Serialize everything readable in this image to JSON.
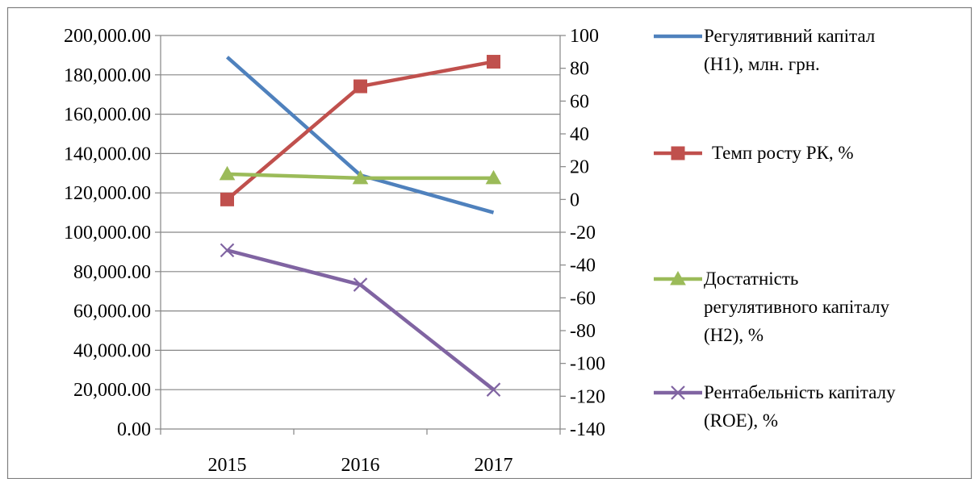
{
  "chart_data": {
    "type": "line",
    "title": "",
    "categories": [
      "2015",
      "2016",
      "2017"
    ],
    "y_left": {
      "ylim": [
        0,
        200000
      ],
      "ticks": [
        "0.00",
        "20,000.00",
        "40,000.00",
        "60,000.00",
        "80,000.00",
        "100,000.00",
        "120,000.00",
        "140,000.00",
        "160,000.00",
        "180,000.00",
        "200,000.00"
      ],
      "grid": true
    },
    "y_right": {
      "ylim": [
        -140,
        100
      ],
      "ticks": [
        "-140",
        "-120",
        "-100",
        "-80",
        "-60",
        "-40",
        "-20",
        "0",
        "20",
        "40",
        "60",
        "80",
        "100"
      ]
    },
    "legend_position": "right",
    "series": [
      {
        "name": "Регулятивний капітал (Н1), млн. грн.",
        "legend_lines": [
          "Регулятивний капітал",
          "(Н1), млн. грн."
        ],
        "axis": "left",
        "color": "#4F81BD",
        "marker": "none",
        "values": [
          189000,
          129000,
          110000
        ]
      },
      {
        "name": "Темп росту РК, %",
        "legend_lines": [
          "Темп росту РК, %"
        ],
        "axis": "right",
        "color": "#C0504D",
        "marker": "square",
        "values": [
          0,
          69,
          84
        ]
      },
      {
        "name": "Достатність регулятивного капіталу (Н2), %",
        "legend_lines": [
          "Достатність",
          "регулятивного капіталу",
          "(Н2), %"
        ],
        "axis": "right",
        "color": "#9BBB59",
        "marker": "triangle",
        "values": [
          15.5,
          13,
          13
        ]
      },
      {
        "name": "Рентабельність капіталу (ROE), %",
        "legend_lines": [
          "Рентабельність капіталу",
          "(ROE), %"
        ],
        "axis": "right",
        "color": "#8064A2",
        "marker": "x",
        "values": [
          -31,
          -52,
          -116
        ]
      }
    ]
  }
}
